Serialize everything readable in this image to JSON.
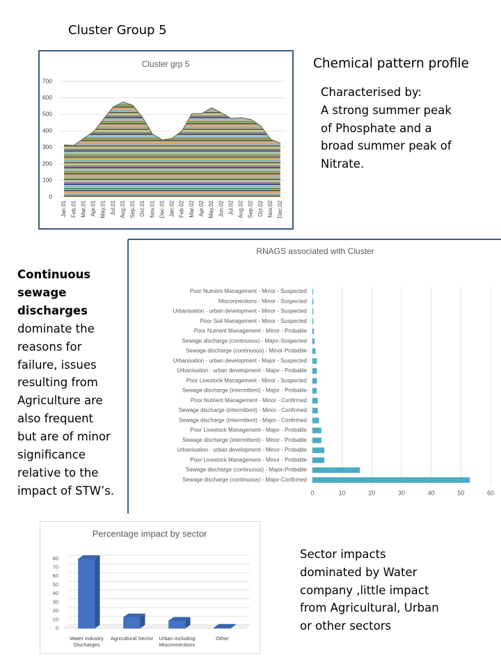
{
  "header": {
    "title": "Cluster Group 5",
    "subtitle": "Chemical pattern profile"
  },
  "profile_text": [
    "Characterised by:",
    "A strong summer peak",
    "of Phosphate and a",
    "broad summer peak of",
    "Nitrate."
  ],
  "failure_text": {
    "bold": [
      "Continuous",
      "sewage",
      "discharges"
    ],
    "rest": [
      "dominate the",
      "reasons for",
      "failure, issues",
      "resulting from",
      "Agriculture are",
      "also frequent",
      "but are of minor",
      "significance",
      "relative to the",
      "impact of STW’s."
    ]
  },
  "sector_text": [
    "Sector impacts",
    "dominated by Water",
    "company ,little impact",
    "from Agricultural, Urban",
    "or other sectors"
  ],
  "chart_data": [
    {
      "type": "area",
      "title": "Cluster grp 5",
      "categories": [
        "Jan.01",
        "Feb.01",
        "Mar.01",
        "Apr.01",
        "May.01",
        "Jul.01",
        "Aug.01",
        "Sep.01",
        "Oct.01",
        "Nov.01",
        "Dec.01",
        "Jan.02",
        "Feb.02",
        "Mar.02",
        "Apr.02",
        "May.02",
        "Jun.02",
        "Jul.02",
        "Aug.02",
        "Sep.02",
        "Oct.02",
        "Nov.02",
        "Dec.02"
      ],
      "values": [
        315,
        312,
        355,
        395,
        470,
        545,
        575,
        555,
        480,
        380,
        345,
        355,
        400,
        505,
        505,
        540,
        510,
        475,
        480,
        470,
        430,
        350,
        325
      ],
      "ylim": [
        0,
        700
      ],
      "yticks": [
        0,
        100,
        200,
        300,
        400,
        500,
        600,
        700
      ],
      "grid": true
    },
    {
      "type": "barh",
      "title": "RNAGS associated with Cluster",
      "color": "#4bacc6",
      "categories": [
        "Poor Nutrient Management - Minor - Suspected",
        "Misconnections - Minor - Suspected",
        "Urbanisation - urban development - Minor - Suspected",
        "Poor Soil Management - Minor - Suspected",
        "Poor Nutrient Management - Minor - Probable",
        "Sewage discharge (continuous) - Major-Suspected",
        "Sewage discharge (continuous) - Minor-Probable",
        "Urbanisation - urban development - Major - Suspected",
        "Urbanisation - urban development - Major - Probable",
        "Poor Livestock Management - Minor - Suspected",
        "Sewage discharge (intermittent) - Major - Probable",
        "Poor Nutrient Management - Minor - Confirmed",
        "Sewage discharge (intermittent) - Minor - Confirmed",
        "Sewage discharge (intermittent) - Major - Confirmed",
        "Poor Livestock Management - Major - Probable",
        "Sewage discharge (intermittent) - Minor - Probable",
        "Urbanisation - urban development - Minor - Probable",
        "Poor Livestock Management - Minor - Probable",
        "Sewage discharge (continuous) - Major-Probable",
        "Sewage discharge (continuous) - Major-Confirmed"
      ],
      "values": [
        0.2,
        0.3,
        0.3,
        0.3,
        0.5,
        0.7,
        1,
        1.5,
        1.5,
        1.5,
        1.5,
        1.8,
        1.8,
        2.2,
        3,
        3,
        4,
        4,
        16,
        53
      ],
      "xlim": [
        0,
        60
      ],
      "xticks": [
        0,
        10,
        20,
        30,
        40,
        50,
        60
      ],
      "grid": true
    },
    {
      "type": "bar",
      "title": "Percentage impact by sector",
      "color": "#4472c4",
      "categories": [
        "Water Industry Discharges",
        "Agricultural Sector",
        "Urban including Misconnections",
        "Other"
      ],
      "values": [
        80,
        13,
        9,
        1
      ],
      "ylim": [
        0,
        80
      ],
      "yticks": [
        0,
        10,
        20,
        30,
        40,
        50,
        60,
        70,
        80
      ],
      "grid": true
    }
  ]
}
